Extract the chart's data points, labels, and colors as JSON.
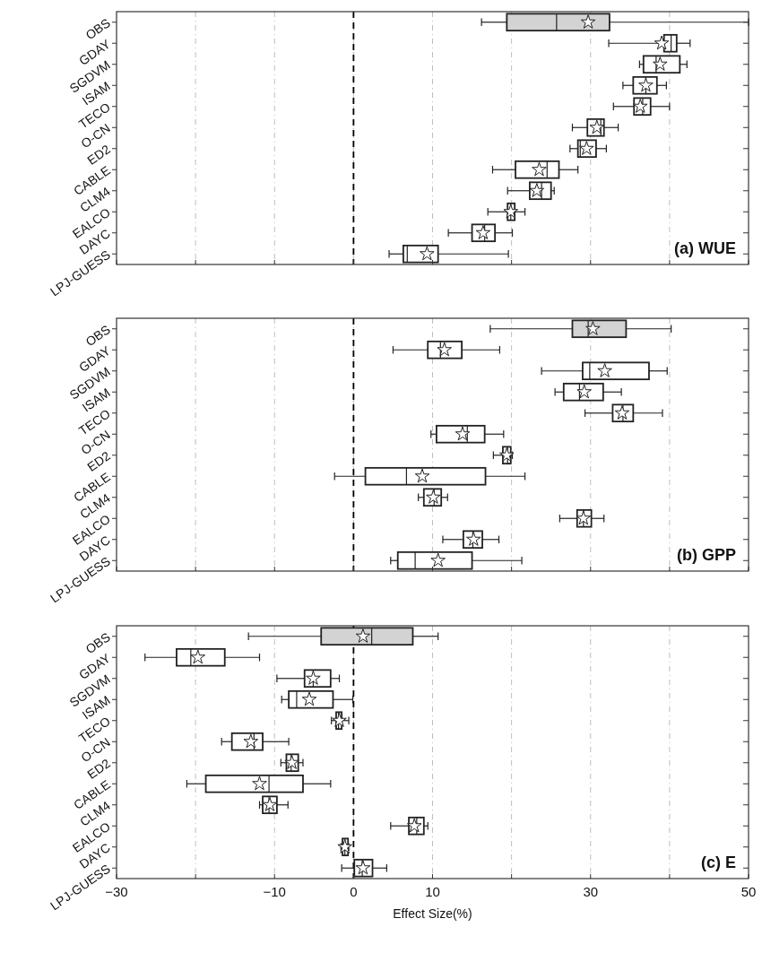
{
  "chart_data": [
    {
      "type": "box",
      "title": "(a) WUE",
      "orientation": "horizontal",
      "categories": [
        "OBS",
        "GDAY",
        "SGDVM",
        "ISAM",
        "TECO",
        "O-CN",
        "ED2",
        "CABLE",
        "CLM4",
        "EALCO",
        "DAYC",
        "LPJ-GUESS"
      ],
      "colors": [
        "#d3d3d3",
        "#ffffff",
        "#ffffff",
        "#ffffff",
        "#ffffff",
        "#ffffff",
        "#ffffff",
        "#ffffff",
        "#ffffff",
        "#ffffff",
        "#ffffff",
        "#ffffff"
      ],
      "boxes": [
        {
          "low": 16.2,
          "q1": 19.4,
          "median": 25.7,
          "q3": 32.4,
          "high": 50,
          "mean": 29.7
        },
        {
          "low": 32.3,
          "q1": 39.3,
          "median": 40.2,
          "q3": 40.9,
          "high": 42.6,
          "mean": 39.0
        },
        {
          "low": 36.2,
          "q1": 36.7,
          "median": 38.3,
          "q3": 41.3,
          "high": 42.2,
          "mean": 38.8
        },
        {
          "low": 34.1,
          "q1": 35.4,
          "median": 37.0,
          "q3": 38.4,
          "high": 39.6,
          "mean": 37.0
        },
        {
          "low": 32.9,
          "q1": 35.5,
          "median": 36.6,
          "q3": 37.6,
          "high": 40.0,
          "mean": 36.3
        },
        {
          "low": 27.7,
          "q1": 29.6,
          "median": 31.3,
          "q3": 31.7,
          "high": 33.5,
          "mean": 30.8
        },
        {
          "low": 27.4,
          "q1": 28.4,
          "median": 28.7,
          "q3": 30.7,
          "high": 32.0,
          "mean": 29.5
        },
        {
          "low": 17.6,
          "q1": 20.5,
          "median": 24.5,
          "q3": 26.0,
          "high": 28.4,
          "mean": 23.5
        },
        {
          "low": 19.5,
          "q1": 22.3,
          "median": 23.8,
          "q3": 25.0,
          "high": 25.4,
          "mean": 23.2
        },
        {
          "low": 17.0,
          "q1": 19.5,
          "median": 19.9,
          "q3": 20.4,
          "high": 21.7,
          "mean": 19.9
        },
        {
          "low": 12.0,
          "q1": 15.0,
          "median": 16.6,
          "q3": 17.9,
          "high": 20.1,
          "mean": 16.4
        },
        {
          "low": 4.5,
          "q1": 6.3,
          "median": 6.8,
          "q3": 10.7,
          "high": 19.6,
          "mean": 9.3
        }
      ],
      "xlim": [
        -30,
        50
      ],
      "xticks": [
        -30,
        {
          "value": -20,
          "label": null
        },
        -10,
        0,
        10,
        {
          "value": 20,
          "label": null
        },
        30,
        {
          "value": 40,
          "label": null
        },
        50
      ],
      "grid": "x",
      "marker": "star",
      "tick_labels": "y",
      "ref_lines": [
        {
          "axis": "x",
          "value": 0,
          "color": "#000000",
          "line_style": "dashed"
        }
      ]
    },
    {
      "type": "box",
      "title": "(b) GPP",
      "orientation": "horizontal",
      "categories": [
        "OBS",
        "GDAY",
        "SGDVM",
        "ISAM",
        "TECO",
        "O-CN",
        "ED2",
        "CABLE",
        "CLM4",
        "EALCO",
        "DAYC",
        "LPJ-GUESS"
      ],
      "colors": [
        "#d3d3d3",
        "#ffffff",
        "#ffffff",
        "#ffffff",
        "#ffffff",
        "#ffffff",
        "#ffffff",
        "#ffffff",
        "#ffffff",
        "#ffffff",
        "#ffffff",
        "#ffffff"
      ],
      "boxes": [
        {
          "low": 17.3,
          "q1": 27.7,
          "median": 29.7,
          "q3": 34.5,
          "high": 40.2,
          "mean": 30.3
        },
        {
          "low": 5.0,
          "q1": 9.4,
          "median": 11.0,
          "q3": 13.7,
          "high": 18.5,
          "mean": 11.5
        },
        {
          "low": 23.8,
          "q1": 29.0,
          "median": 29.9,
          "q3": 37.4,
          "high": 39.7,
          "mean": 31.8
        },
        {
          "low": 25.5,
          "q1": 26.6,
          "median": 28.6,
          "q3": 31.6,
          "high": 33.9,
          "mean": 29.2
        },
        {
          "low": 29.3,
          "q1": 32.8,
          "median": 34.1,
          "q3": 35.4,
          "high": 39.1,
          "mean": 34.0
        },
        {
          "low": 9.8,
          "q1": 10.5,
          "median": 14.4,
          "q3": 16.6,
          "high": 19.0,
          "mean": 13.8
        },
        {
          "low": 17.7,
          "q1": 18.9,
          "median": 19.5,
          "q3": 19.9,
          "high": 20.1,
          "mean": 19.4
        },
        {
          "low": -2.4,
          "q1": 1.5,
          "median": 6.7,
          "q3": 16.7,
          "high": 21.7,
          "mean": 8.7
        },
        {
          "low": 8.2,
          "q1": 8.9,
          "median": 10.2,
          "q3": 11.1,
          "high": 11.9,
          "mean": 10.1
        },
        {
          "low": 26.1,
          "q1": 28.3,
          "median": 29.1,
          "q3": 30.1,
          "high": 31.7,
          "mean": 29.1
        },
        {
          "low": 11.3,
          "q1": 13.9,
          "median": 15.1,
          "q3": 16.3,
          "high": 18.4,
          "mean": 15.2
        },
        {
          "low": 4.7,
          "q1": 5.6,
          "median": 7.8,
          "q3": 15.0,
          "high": 21.3,
          "mean": 10.7
        }
      ],
      "xlim": [
        -30,
        50
      ],
      "xticks": [
        -30,
        {
          "value": -20,
          "label": null
        },
        -10,
        0,
        10,
        {
          "value": 20,
          "label": null
        },
        30,
        {
          "value": 40,
          "label": null
        },
        50
      ],
      "grid": "x",
      "marker": "star",
      "tick_labels": "y",
      "ref_lines": [
        {
          "axis": "x",
          "value": 0,
          "color": "#000000",
          "line_style": "dashed"
        }
      ]
    },
    {
      "type": "box",
      "title": "(c) E",
      "xlabel": "Effect Size(%)",
      "orientation": "horizontal",
      "categories": [
        "OBS",
        "GDAY",
        "SGDVM",
        "ISAM",
        "TECO",
        "O-CN",
        "ED2",
        "CABLE",
        "CLM4",
        "EALCO",
        "DAYC",
        "LPJ-GUESS"
      ],
      "colors": [
        "#d3d3d3",
        "#ffffff",
        "#ffffff",
        "#ffffff",
        "#ffffff",
        "#ffffff",
        "#ffffff",
        "#ffffff",
        "#ffffff",
        "#ffffff",
        "#ffffff",
        "#ffffff"
      ],
      "boxes": [
        {
          "low": -13.3,
          "q1": -4.1,
          "median": 2.3,
          "q3": 7.5,
          "high": 10.7,
          "mean": 1.2
        },
        {
          "low": -26.4,
          "q1": -22.4,
          "median": -20.6,
          "q3": -16.3,
          "high": -11.9,
          "mean": -19.7
        },
        {
          "low": -9.7,
          "q1": -6.2,
          "median": -5.1,
          "q3": -2.9,
          "high": -1.8,
          "mean": -5.1
        },
        {
          "low": -9.1,
          "q1": -8.2,
          "median": -7.2,
          "q3": -2.6,
          "high": -0.1,
          "mean": -5.6
        },
        {
          "low": -2.8,
          "q1": -2.2,
          "median": -1.9,
          "q3": -1.5,
          "high": -0.6,
          "mean": -1.8
        },
        {
          "low": -16.7,
          "q1": -15.4,
          "median": -12.6,
          "q3": -11.5,
          "high": -8.2,
          "mean": -13.0
        },
        {
          "low": -9.2,
          "q1": -8.5,
          "median": -7.9,
          "q3": -7.0,
          "high": -6.4,
          "mean": -7.8
        },
        {
          "low": -21.1,
          "q1": -18.7,
          "median": -10.7,
          "q3": -6.4,
          "high": -2.9,
          "mean": -11.9
        },
        {
          "low": -11.9,
          "q1": -11.5,
          "median": -10.7,
          "q3": -9.7,
          "high": -8.3,
          "mean": -10.6
        },
        {
          "low": 4.7,
          "q1": 7.0,
          "median": 8.0,
          "q3": 8.9,
          "high": 9.4,
          "mean": 7.7
        },
        {
          "low": -1.6,
          "q1": -1.4,
          "median": -1.1,
          "q3": -0.7,
          "high": -0.6,
          "mean": -1.1
        },
        {
          "low": -1.5,
          "q1": 0.1,
          "median": 1.1,
          "q3": 2.4,
          "high": 4.2,
          "mean": 1.2
        }
      ],
      "xlim": [
        -30,
        50
      ],
      "xticks": [
        -30,
        {
          "value": -20,
          "label": null
        },
        -10,
        0,
        10,
        {
          "value": 20,
          "label": null
        },
        30,
        {
          "value": 40,
          "label": null
        },
        50
      ],
      "grid": "x",
      "marker": "star",
      "ref_lines": [
        {
          "axis": "x",
          "value": 0,
          "color": "#000000",
          "line_style": "dashed"
        }
      ]
    }
  ]
}
